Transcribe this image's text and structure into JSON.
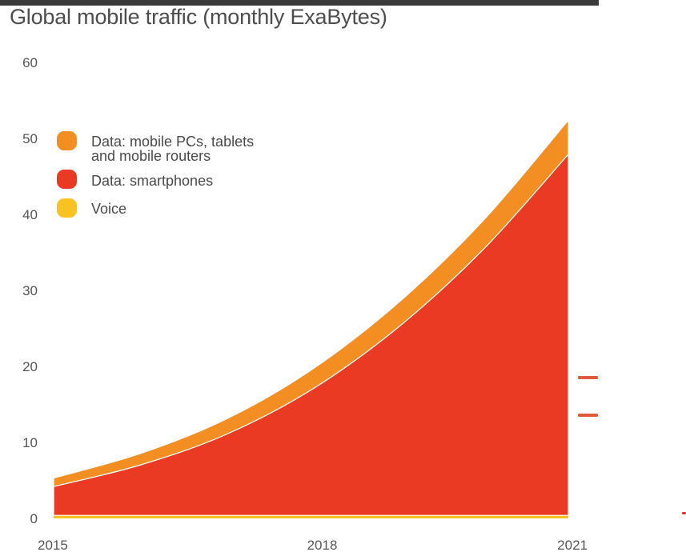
{
  "chart_data": {
    "type": "area",
    "stacked": true,
    "title": "Global mobile traffic (monthly ExaBytes)",
    "xlabel": "",
    "ylabel": "",
    "x": [
      2015,
      2016,
      2017,
      2018,
      2019,
      2020,
      2021
    ],
    "x_ticks": [
      {
        "value": 2015,
        "label": "2015"
      },
      {
        "value": 2018,
        "label": "2018"
      },
      {
        "value": 2021,
        "label": "2021"
      }
    ],
    "y_ticks": [
      {
        "value": 0,
        "label": "0"
      },
      {
        "value": 10,
        "label": "10"
      },
      {
        "value": 20,
        "label": "20"
      },
      {
        "value": 30,
        "label": "30"
      },
      {
        "value": 40,
        "label": "40"
      },
      {
        "value": 50,
        "label": "50"
      },
      {
        "value": 60,
        "label": "60"
      }
    ],
    "xlim": [
      2015,
      2021
    ],
    "ylim": [
      0,
      60
    ],
    "grid": false,
    "legend_position": "upper-left",
    "series": [
      {
        "name": "Voice",
        "color": "#f8c322",
        "values": [
          0.4,
          0.4,
          0.4,
          0.4,
          0.4,
          0.4,
          0.4
        ]
      },
      {
        "name": "Data: smartphones",
        "color": "#ea3a24",
        "values": [
          3.8,
          6.6,
          10.6,
          16.5,
          24.6,
          34.9,
          47.5
        ]
      },
      {
        "name": "Data: mobile PCs, tablets and mobile routers",
        "color": "#f28e22",
        "values": [
          1.1,
          1.5,
          2.0,
          2.6,
          3.2,
          3.8,
          4.5
        ]
      }
    ],
    "legend": [
      {
        "label": "Data: mobile PCs, tablets",
        "label2": "and mobile routers",
        "color": "#f28e22"
      },
      {
        "label": "Data: smartphones",
        "color": "#ea3a24"
      },
      {
        "label": "Voice",
        "color": "#f8c322"
      }
    ]
  },
  "edge_marks": [
    {
      "name": "right-edge-mark-upper",
      "color": "#e05a3a"
    },
    {
      "name": "right-edge-mark-lower",
      "color": "#e05a3a"
    },
    {
      "name": "right-edge-mark-bottom",
      "color": "#e03020"
    }
  ]
}
